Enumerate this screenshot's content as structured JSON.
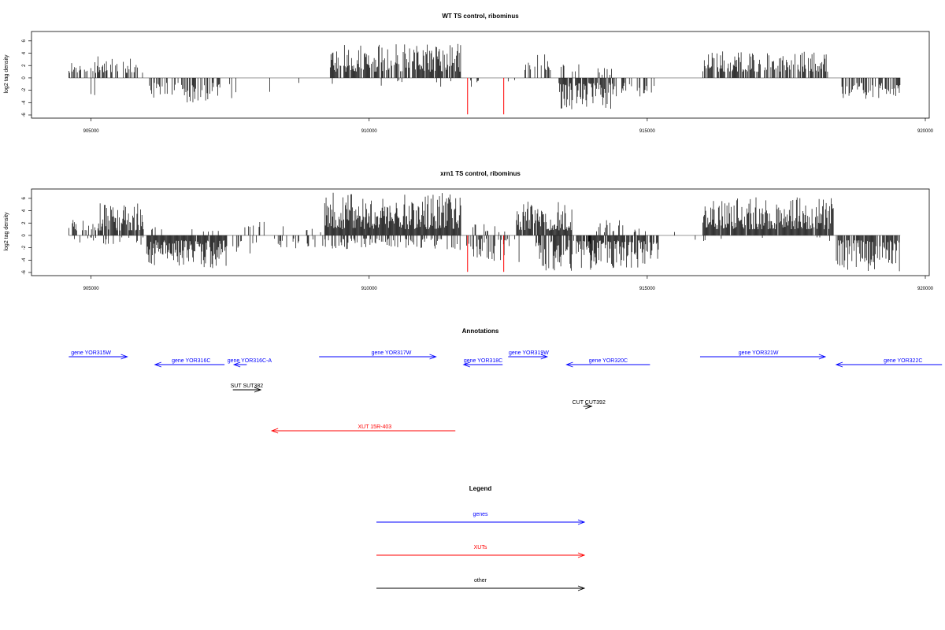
{
  "chart_data": [
    {
      "type": "bar",
      "title": "WT TS control, ribominus",
      "ylabel": "log2 tag density",
      "xlim": [
        904000,
        920000
      ],
      "ylim": [
        -6,
        7
      ],
      "x_ticks": [
        905000,
        910000,
        915000,
        920000
      ],
      "y_ticks": [
        -6,
        -4,
        -2,
        0,
        2,
        4,
        6
      ],
      "x_tick_labels": [
        "905000",
        "910000",
        "915000",
        "920000"
      ],
      "y_tick_labels": [
        "-6",
        "-4",
        "-2",
        "0",
        "2",
        "4",
        "6"
      ],
      "baseline_color": "#888888",
      "bar_color": "#000000",
      "highlight_color": "#ff0000",
      "seed": 11,
      "blocks": [
        {
          "from": 904600,
          "to": 905950,
          "dir": 1,
          "density": 0.45,
          "min": 0.8,
          "max": 3.5
        },
        {
          "from": 904950,
          "to": 905100,
          "dir": -1,
          "density": 0.1,
          "min": 2.0,
          "max": 2.8
        },
        {
          "from": 906050,
          "to": 906500,
          "dir": -1,
          "density": 0.45,
          "min": 0.8,
          "max": 4.3
        },
        {
          "from": 906500,
          "to": 907350,
          "dir": -1,
          "density": 0.55,
          "min": 0.8,
          "max": 4.0
        },
        {
          "from": 907400,
          "to": 907800,
          "dir": -1,
          "density": 0.12,
          "min": 1.0,
          "max": 3.3
        },
        {
          "from": 908200,
          "to": 908300,
          "dir": -1,
          "density": 0.1,
          "min": 1.5,
          "max": 2.6
        },
        {
          "from": 908700,
          "to": 908800,
          "dir": -1,
          "density": 0.08,
          "min": 0.5,
          "max": 1.2
        },
        {
          "from": 909300,
          "to": 911650,
          "dir": 1,
          "density": 0.85,
          "min": 1.0,
          "max": 5.5
        },
        {
          "from": 909300,
          "to": 911650,
          "dir": -1,
          "density": 0.05,
          "min": 0.3,
          "max": 1.5
        },
        {
          "from": 911800,
          "to": 912250,
          "dir": -1,
          "density": 0.12,
          "min": 0.4,
          "max": 1.6
        },
        {
          "from": 912500,
          "to": 912650,
          "dir": -1,
          "density": 0.06,
          "min": 0.3,
          "max": 0.8
        },
        {
          "from": 912800,
          "to": 913300,
          "dir": 1,
          "density": 0.25,
          "min": 0.8,
          "max": 3.8
        },
        {
          "from": 913400,
          "to": 914450,
          "dir": -1,
          "density": 0.8,
          "min": 0.8,
          "max": 5.2
        },
        {
          "from": 913400,
          "to": 914450,
          "dir": 1,
          "density": 0.12,
          "min": 0.5,
          "max": 2.2
        },
        {
          "from": 914450,
          "to": 915150,
          "dir": -1,
          "density": 0.35,
          "min": 0.8,
          "max": 3.0
        },
        {
          "from": 916000,
          "to": 918250,
          "dir": 1,
          "density": 0.7,
          "min": 1.0,
          "max": 4.3
        },
        {
          "from": 918500,
          "to": 919550,
          "dir": -1,
          "density": 0.6,
          "min": 0.8,
          "max": 3.6
        }
      ],
      "highlights": [
        {
          "x": 911770,
          "y": -5.9
        },
        {
          "x": 912420,
          "y": -5.9
        }
      ]
    },
    {
      "type": "bar",
      "title": "xrn1 TS control, ribominus",
      "ylabel": "log2 tag density",
      "xlim": [
        904000,
        920000
      ],
      "ylim": [
        -6,
        7
      ],
      "x_ticks": [
        905000,
        910000,
        915000,
        920000
      ],
      "y_ticks": [
        -6,
        -4,
        -2,
        0,
        2,
        4,
        6
      ],
      "x_tick_labels": [
        "905000",
        "910000",
        "915000",
        "920000"
      ],
      "y_tick_labels": [
        "-6",
        "-4",
        "-2",
        "0",
        "2",
        "4",
        "6"
      ],
      "baseline_color": "#888888",
      "bar_color": "#000000",
      "highlight_color": "#ff0000",
      "seed": 23,
      "blocks": [
        {
          "from": 904600,
          "to": 905150,
          "dir": 1,
          "density": 0.35,
          "min": 0.8,
          "max": 2.8
        },
        {
          "from": 905150,
          "to": 905950,
          "dir": 1,
          "density": 0.85,
          "min": 0.8,
          "max": 5.2
        },
        {
          "from": 904700,
          "to": 905950,
          "dir": -1,
          "density": 0.1,
          "min": 0.3,
          "max": 1.5
        },
        {
          "from": 906000,
          "to": 907450,
          "dir": -1,
          "density": 0.95,
          "min": 0.8,
          "max": 5.5
        },
        {
          "from": 906000,
          "to": 907450,
          "dir": 1,
          "density": 0.08,
          "min": 0.3,
          "max": 1.5
        },
        {
          "from": 907500,
          "to": 908000,
          "dir": -1,
          "density": 0.25,
          "min": 0.8,
          "max": 3.6
        },
        {
          "from": 907600,
          "to": 908200,
          "dir": 1,
          "density": 0.1,
          "min": 0.8,
          "max": 2.5
        },
        {
          "from": 908300,
          "to": 909300,
          "dir": -1,
          "density": 0.25,
          "min": 0.5,
          "max": 2.2
        },
        {
          "from": 908400,
          "to": 909200,
          "dir": 1,
          "density": 0.08,
          "min": 0.5,
          "max": 1.5
        },
        {
          "from": 909200,
          "to": 911650,
          "dir": 1,
          "density": 1.0,
          "min": 1.0,
          "max": 7.0
        },
        {
          "from": 909200,
          "to": 911650,
          "dir": -1,
          "density": 0.35,
          "min": 0.5,
          "max": 2.6
        },
        {
          "from": 911650,
          "to": 912700,
          "dir": -1,
          "density": 0.45,
          "min": 0.5,
          "max": 4.5
        },
        {
          "from": 911800,
          "to": 912500,
          "dir": 1,
          "density": 0.12,
          "min": 0.5,
          "max": 2.2
        },
        {
          "from": 912650,
          "to": 913650,
          "dir": 1,
          "density": 0.95,
          "min": 0.8,
          "max": 5.5
        },
        {
          "from": 913000,
          "to": 914000,
          "dir": -1,
          "density": 0.7,
          "min": 0.8,
          "max": 5.8
        },
        {
          "from": 913900,
          "to": 915200,
          "dir": -1,
          "density": 0.85,
          "min": 0.8,
          "max": 5.3
        },
        {
          "from": 914000,
          "to": 915200,
          "dir": 1,
          "density": 0.2,
          "min": 0.5,
          "max": 2.5
        },
        {
          "from": 915400,
          "to": 915500,
          "dir": 1,
          "density": 0.1,
          "min": 0.5,
          "max": 1.0
        },
        {
          "from": 915800,
          "to": 915900,
          "dir": -1,
          "density": 0.1,
          "min": 0.5,
          "max": 0.9
        },
        {
          "from": 916000,
          "to": 918350,
          "dir": 1,
          "density": 0.95,
          "min": 1.0,
          "max": 6.2
        },
        {
          "from": 916000,
          "to": 918350,
          "dir": -1,
          "density": 0.05,
          "min": 0.3,
          "max": 1.0
        },
        {
          "from": 918400,
          "to": 919550,
          "dir": -1,
          "density": 0.8,
          "min": 0.8,
          "max": 5.8
        }
      ],
      "highlights": [
        {
          "x": 911770,
          "y": -5.9
        },
        {
          "x": 912420,
          "y": -5.9
        }
      ]
    }
  ],
  "annotations": {
    "title": "Annotations",
    "xlim": [
      904000,
      920000
    ],
    "features": [
      {
        "label": "gene YOR315W",
        "start": 904600,
        "end": 905650,
        "row": 0,
        "color": "#0000ff",
        "label_at": 905000
      },
      {
        "label": "gene YOR316C",
        "start": 906150,
        "end": 907400,
        "row": 1,
        "color": "#0000ff",
        "label_at": 906800
      },
      {
        "label": "gene YOR316C-A",
        "start": 907570,
        "end": 907800,
        "row": 1,
        "color": "#0000ff",
        "label_at": 907850
      },
      {
        "label": "gene YOR317W",
        "start": 909100,
        "end": 911200,
        "row": 0,
        "color": "#0000ff",
        "label_at": 910400
      },
      {
        "label": "gene YOR318C",
        "start": 911700,
        "end": 912400,
        "row": 1,
        "color": "#0000ff",
        "label_at": 912050
      },
      {
        "label": "gene YOR319W",
        "start": 912500,
        "end": 913200,
        "row": 0,
        "color": "#0000ff",
        "label_at": 912870
      },
      {
        "label": "gene YOR320C",
        "start": 913550,
        "end": 915050,
        "row": 1,
        "color": "#0000ff",
        "label_at": 914300
      },
      {
        "label": "gene YOR321W",
        "start": 915950,
        "end": 918200,
        "row": 0,
        "color": "#0000ff",
        "label_at": 917000
      },
      {
        "label": "gene YOR322C",
        "start": 918400,
        "end": 920300,
        "row": 1,
        "color": "#0000ff",
        "label_at": 919600
      },
      {
        "label": "SUT SUT382",
        "start": 907550,
        "end": 908050,
        "row": 2,
        "color": "#000000",
        "label_at": 907800
      },
      {
        "label": "CUT CUT392",
        "start": 913850,
        "end": 914000,
        "row": 3,
        "color": "#000000",
        "label_at": 913950
      },
      {
        "label": "XUT 15R-403",
        "start": 908250,
        "end": 911550,
        "row": 4,
        "color": "#ff0000",
        "label_at": 910100
      }
    ]
  },
  "legend": {
    "title": "Legend",
    "entries": [
      {
        "label": "genes",
        "color": "#0000ff"
      },
      {
        "label": "XUTs",
        "color": "#ff0000"
      },
      {
        "label": "other",
        "color": "#000000"
      }
    ]
  }
}
